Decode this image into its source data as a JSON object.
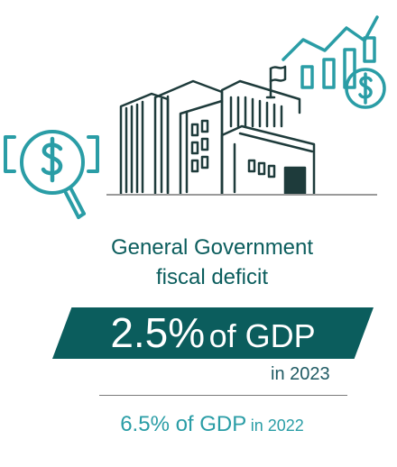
{
  "title": {
    "line1": "General Government",
    "line2": "fiscal deficit"
  },
  "current": {
    "value": "2.5%",
    "suffix": "of GDP",
    "year_label": "in 2023"
  },
  "previous": {
    "value": "6.5% of GDP",
    "year_label": "in 2022"
  },
  "colors": {
    "dark_teal": "#0b5d5d",
    "light_teal": "#2a9da6",
    "rule_gray": "#7a7a7a"
  },
  "icons": [
    "magnifier-dollar-icon",
    "government-building-icon",
    "growth-chart-dollar-icon"
  ]
}
